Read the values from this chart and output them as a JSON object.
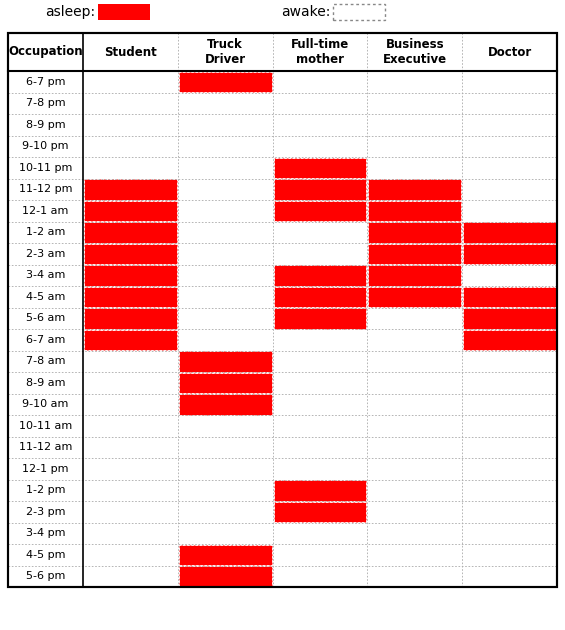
{
  "time_slots": [
    "6-7 pm",
    "7-8 pm",
    "8-9 pm",
    "9-10 pm",
    "10-11 pm",
    "11-12 pm",
    "12-1 am",
    "1-2 am",
    "2-3 am",
    "3-4 am",
    "4-5 am",
    "5-6 am",
    "6-7 am",
    "7-8 am",
    "8-9 am",
    "9-10 am",
    "10-11 am",
    "11-12 am",
    "12-1 pm",
    "1-2 pm",
    "2-3 pm",
    "3-4 pm",
    "4-5 pm",
    "5-6 pm"
  ],
  "occupations": [
    "Student",
    "Truck\nDriver",
    "Full-time\nmother",
    "Business\nExecutive",
    "Doctor"
  ],
  "sleep_data": {
    "Student": [
      0,
      0,
      0,
      0,
      0,
      1,
      1,
      1,
      1,
      1,
      1,
      1,
      1,
      0,
      0,
      0,
      0,
      0,
      0,
      0,
      0,
      0,
      0,
      0
    ],
    "Truck\nDriver": [
      1,
      0,
      0,
      0,
      0,
      0,
      0,
      0,
      0,
      0,
      0,
      0,
      0,
      1,
      1,
      1,
      0,
      0,
      0,
      0,
      0,
      0,
      1,
      1
    ],
    "Full-time\nmother": [
      0,
      0,
      0,
      0,
      1,
      1,
      1,
      0,
      0,
      1,
      1,
      1,
      0,
      0,
      0,
      0,
      0,
      0,
      0,
      1,
      1,
      0,
      0,
      0
    ],
    "Business\nExecutive": [
      0,
      0,
      0,
      0,
      0,
      1,
      1,
      1,
      1,
      1,
      1,
      0,
      0,
      0,
      0,
      0,
      0,
      0,
      0,
      0,
      0,
      0,
      0,
      0
    ],
    "Doctor": [
      0,
      0,
      0,
      0,
      0,
      0,
      0,
      1,
      1,
      0,
      1,
      1,
      1,
      0,
      0,
      0,
      0,
      0,
      0,
      0,
      0,
      0,
      0,
      0
    ]
  },
  "sleep_color": "#FF0000",
  "grid_color": "#AAAAAA",
  "border_color": "#000000",
  "bg_color": "#FFFFFF",
  "cell_text_fontsize": 8.0,
  "header_fontsize": 8.5,
  "legend_fontsize": 10,
  "legend_asleep_label": "asleep:",
  "legend_awake_label": "awake:",
  "occupation_col_label": "Occupation"
}
